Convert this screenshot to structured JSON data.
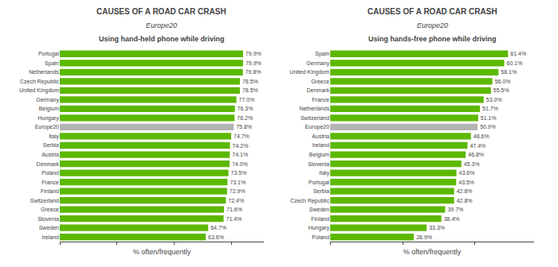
{
  "chart_data": [
    {
      "type": "bar",
      "orientation": "horizontal",
      "title": "CAUSES OF A ROAD CAR CRASH",
      "subtitle": "Using hand-held phone while driving",
      "annotations": [
        "Europe20"
      ],
      "xlabel": "% often/frequently",
      "categories": [
        "Portugal",
        "Spain",
        "Netherlands",
        "Czech Republic",
        "United Kingdom",
        "Germany",
        "Belgium",
        "Hungary",
        "Europe20",
        "Italy",
        "Serbia",
        "Austria",
        "Denmark",
        "Poland",
        "France",
        "Finland",
        "Switzerland",
        "Greece",
        "Slovenia",
        "Sweden",
        "Ireland"
      ],
      "values": [
        79.9,
        79.9,
        79.8,
        78.5,
        78.5,
        77.0,
        76.3,
        76.2,
        75.8,
        74.7,
        74.2,
        74.1,
        74.0,
        73.5,
        73.1,
        72.9,
        72.4,
        71.6,
        71.4,
        64.7,
        63.6
      ],
      "value_labels": [
        "79.9%",
        "79.9%",
        "79.8%",
        "78.5%",
        "78.5%",
        "77.0%",
        "76.3%",
        "76.2%",
        "75.8%",
        "74.7%",
        "74.2%",
        "74.1%",
        "74.0%",
        "73.5%",
        "73.1%",
        "72.9%",
        "72.4%",
        "71.6%",
        "71.4%",
        "64.7%",
        "63.6%"
      ],
      "colors": [
        "#5cb800",
        "#5cb800",
        "#5cb800",
        "#5cb800",
        "#5cb800",
        "#5cb800",
        "#5cb800",
        "#5cb800",
        "#b3b3b3",
        "#5cb800",
        "#5cb800",
        "#5cb800",
        "#5cb800",
        "#5cb800",
        "#5cb800",
        "#5cb800",
        "#5cb800",
        "#5cb800",
        "#5cb800",
        "#5cb800",
        "#5cb800"
      ],
      "xlim": [
        0,
        88.9
      ],
      "xticks": [
        0,
        25,
        50,
        75
      ],
      "grid": false,
      "tick_labels": "y",
      "data_labels": true
    },
    {
      "type": "bar",
      "orientation": "horizontal",
      "title": "CAUSES OF A ROAD CAR CRASH",
      "subtitle": "Using hands-free phone while driving",
      "annotations": [
        "Europe20"
      ],
      "xlabel": "% often/frequently",
      "categories": [
        "Spain",
        "Germany",
        "United Kingdom",
        "Greece",
        "Denmark",
        "France",
        "Netherlands",
        "Switzerland",
        "Europe20",
        "Austria",
        "Ireland",
        "Belgium",
        "Slovenia",
        "Italy",
        "Portugal",
        "Serbia",
        "Czech Republic",
        "Sweden",
        "Finland",
        "Hungary",
        "Poland"
      ],
      "values": [
        61.4,
        60.1,
        58.1,
        56.0,
        55.5,
        53.0,
        51.7,
        51.1,
        50.9,
        48.6,
        47.4,
        46.8,
        45.3,
        43.6,
        43.5,
        42.8,
        42.8,
        39.7,
        38.4,
        33.3,
        28.9
      ],
      "value_labels": [
        "61.4%",
        "60.1%",
        "58.1%",
        "56.0%",
        "55.5%",
        "53.0%",
        "51.7%",
        "51.1%",
        "50.9%",
        "48.6%",
        "47.4%",
        "46.8%",
        "45.3%",
        "43.6%",
        "43.5%",
        "42.8%",
        "42.8%",
        "39.7%",
        "38.4%",
        "33.3%",
        "28.9%"
      ],
      "colors": [
        "#5cb800",
        "#5cb800",
        "#5cb800",
        "#5cb800",
        "#5cb800",
        "#5cb800",
        "#5cb800",
        "#5cb800",
        "#b3b3b3",
        "#5cb800",
        "#5cb800",
        "#5cb800",
        "#5cb800",
        "#5cb800",
        "#5cb800",
        "#5cb800",
        "#5cb800",
        "#5cb800",
        "#5cb800",
        "#5cb800",
        "#5cb800"
      ],
      "xlim": [
        0,
        70.4
      ],
      "xticks": [
        0,
        25,
        50
      ],
      "grid": false,
      "tick_labels": "y",
      "data_labels": true
    }
  ]
}
